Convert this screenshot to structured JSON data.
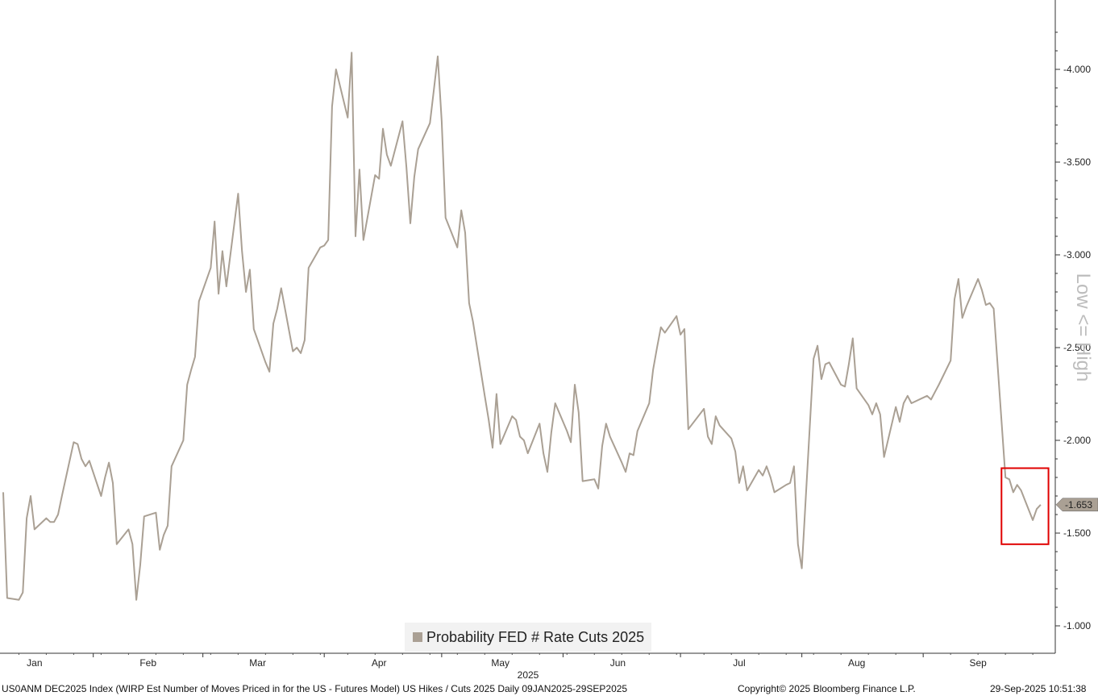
{
  "chart_data": {
    "type": "line",
    "title": "",
    "ylabel": "Low <= High",
    "xlabel": "2025",
    "y_axis_inverted": true,
    "y_axis_position": "right",
    "ylim": [
      -0.95,
      -4.3
    ],
    "yticks": [
      -4.0,
      -3.5,
      -3.0,
      -2.5,
      -2.0,
      -1.5,
      -1.0
    ],
    "ytick_labels": [
      "-4.000",
      "-3.500",
      "-3.000",
      "-2.500",
      "-2.000",
      "-1.500",
      "-1.000"
    ],
    "xlim": [
      "2025-01-09",
      "2025-09-30"
    ],
    "months": [
      {
        "label": "Jan",
        "date": "2025-01-17"
      },
      {
        "label": "Feb",
        "date": "2025-02-15"
      },
      {
        "label": "Mar",
        "date": "2025-03-15"
      },
      {
        "label": "Apr",
        "date": "2025-04-15"
      },
      {
        "label": "May",
        "date": "2025-05-16"
      },
      {
        "label": "Jun",
        "date": "2025-06-15"
      },
      {
        "label": "Jul",
        "date": "2025-07-16"
      },
      {
        "label": "Aug",
        "date": "2025-08-15"
      },
      {
        "label": "Sep",
        "date": "2025-09-15"
      }
    ],
    "grid": false,
    "legend_position": "bottom-center",
    "series": [
      {
        "name": "Probability FED # Rate Cuts 2025",
        "color": "#aaa094",
        "last_value_label": "-1.653",
        "points": [
          [
            "2025-01-09",
            -1.72
          ],
          [
            "2025-01-10",
            -1.15
          ],
          [
            "2025-01-13",
            -1.14
          ],
          [
            "2025-01-14",
            -1.18
          ],
          [
            "2025-01-15",
            -1.58
          ],
          [
            "2025-01-16",
            -1.7
          ],
          [
            "2025-01-17",
            -1.52
          ],
          [
            "2025-01-20",
            -1.58
          ],
          [
            "2025-01-21",
            -1.56
          ],
          [
            "2025-01-22",
            -1.56
          ],
          [
            "2025-01-23",
            -1.6
          ],
          [
            "2025-01-24",
            -1.7
          ],
          [
            "2025-01-27",
            -1.99
          ],
          [
            "2025-01-28",
            -1.98
          ],
          [
            "2025-01-29",
            -1.9
          ],
          [
            "2025-01-30",
            -1.86
          ],
          [
            "2025-01-31",
            -1.89
          ],
          [
            "2025-02-03",
            -1.7
          ],
          [
            "2025-02-04",
            -1.8
          ],
          [
            "2025-02-05",
            -1.88
          ],
          [
            "2025-02-06",
            -1.77
          ],
          [
            "2025-02-07",
            -1.44
          ],
          [
            "2025-02-10",
            -1.52
          ],
          [
            "2025-02-11",
            -1.44
          ],
          [
            "2025-02-12",
            -1.14
          ],
          [
            "2025-02-13",
            -1.33
          ],
          [
            "2025-02-14",
            -1.59
          ],
          [
            "2025-02-17",
            -1.61
          ],
          [
            "2025-02-18",
            -1.41
          ],
          [
            "2025-02-19",
            -1.49
          ],
          [
            "2025-02-20",
            -1.54
          ],
          [
            "2025-02-21",
            -1.86
          ],
          [
            "2025-02-24",
            -2.0
          ],
          [
            "2025-02-25",
            -2.3
          ],
          [
            "2025-02-26",
            -2.38
          ],
          [
            "2025-02-27",
            -2.45
          ],
          [
            "2025-02-28",
            -2.75
          ],
          [
            "2025-03-03",
            -2.93
          ],
          [
            "2025-03-04",
            -3.18
          ],
          [
            "2025-03-05",
            -2.79
          ],
          [
            "2025-03-06",
            -3.02
          ],
          [
            "2025-03-07",
            -2.83
          ],
          [
            "2025-03-10",
            -3.33
          ],
          [
            "2025-03-11",
            -3.02
          ],
          [
            "2025-03-12",
            -2.8
          ],
          [
            "2025-03-13",
            -2.92
          ],
          [
            "2025-03-14",
            -2.6
          ],
          [
            "2025-03-17",
            -2.42
          ],
          [
            "2025-03-18",
            -2.37
          ],
          [
            "2025-03-19",
            -2.63
          ],
          [
            "2025-03-20",
            -2.71
          ],
          [
            "2025-03-21",
            -2.82
          ],
          [
            "2025-03-24",
            -2.48
          ],
          [
            "2025-03-25",
            -2.5
          ],
          [
            "2025-03-26",
            -2.47
          ],
          [
            "2025-03-27",
            -2.54
          ],
          [
            "2025-03-28",
            -2.93
          ],
          [
            "2025-03-31",
            -3.04
          ],
          [
            "2025-04-01",
            -3.05
          ],
          [
            "2025-04-02",
            -3.08
          ],
          [
            "2025-04-03",
            -3.8
          ],
          [
            "2025-04-04",
            -4.0
          ],
          [
            "2025-04-07",
            -3.74
          ],
          [
            "2025-04-08",
            -4.09
          ],
          [
            "2025-04-09",
            -3.1
          ],
          [
            "2025-04-10",
            -3.46
          ],
          [
            "2025-04-11",
            -3.08
          ],
          [
            "2025-04-14",
            -3.43
          ],
          [
            "2025-04-15",
            -3.41
          ],
          [
            "2025-04-16",
            -3.68
          ],
          [
            "2025-04-17",
            -3.54
          ],
          [
            "2025-04-18",
            -3.48
          ],
          [
            "2025-04-21",
            -3.72
          ],
          [
            "2025-04-22",
            -3.47
          ],
          [
            "2025-04-23",
            -3.17
          ],
          [
            "2025-04-24",
            -3.42
          ],
          [
            "2025-04-25",
            -3.57
          ],
          [
            "2025-04-28",
            -3.71
          ],
          [
            "2025-04-29",
            -3.89
          ],
          [
            "2025-04-30",
            -4.07
          ],
          [
            "2025-05-01",
            -3.72
          ],
          [
            "2025-05-02",
            -3.2
          ],
          [
            "2025-05-05",
            -3.04
          ],
          [
            "2025-05-06",
            -3.24
          ],
          [
            "2025-05-07",
            -3.12
          ],
          [
            "2025-05-08",
            -2.74
          ],
          [
            "2025-05-09",
            -2.64
          ],
          [
            "2025-05-12",
            -2.24
          ],
          [
            "2025-05-13",
            -2.11
          ],
          [
            "2025-05-14",
            -1.96
          ],
          [
            "2025-05-15",
            -2.25
          ],
          [
            "2025-05-16",
            -1.98
          ],
          [
            "2025-05-19",
            -2.13
          ],
          [
            "2025-05-20",
            -2.11
          ],
          [
            "2025-05-21",
            -2.02
          ],
          [
            "2025-05-22",
            -2.0
          ],
          [
            "2025-05-23",
            -1.93
          ],
          [
            "2025-05-26",
            -2.09
          ],
          [
            "2025-05-27",
            -1.93
          ],
          [
            "2025-05-28",
            -1.83
          ],
          [
            "2025-05-29",
            -2.04
          ],
          [
            "2025-05-30",
            -2.2
          ],
          [
            "2025-06-02",
            -2.05
          ],
          [
            "2025-06-03",
            -1.99
          ],
          [
            "2025-06-04",
            -2.3
          ],
          [
            "2025-06-05",
            -2.15
          ],
          [
            "2025-06-06",
            -1.78
          ],
          [
            "2025-06-09",
            -1.79
          ],
          [
            "2025-06-10",
            -1.74
          ],
          [
            "2025-06-11",
            -1.97
          ],
          [
            "2025-06-12",
            -2.09
          ],
          [
            "2025-06-13",
            -2.02
          ],
          [
            "2025-06-16",
            -1.88
          ],
          [
            "2025-06-17",
            -1.83
          ],
          [
            "2025-06-18",
            -1.93
          ],
          [
            "2025-06-19",
            -1.92
          ],
          [
            "2025-06-20",
            -2.05
          ],
          [
            "2025-06-23",
            -2.2
          ],
          [
            "2025-06-24",
            -2.38
          ],
          [
            "2025-06-25",
            -2.5
          ],
          [
            "2025-06-26",
            -2.61
          ],
          [
            "2025-06-27",
            -2.58
          ],
          [
            "2025-06-30",
            -2.67
          ],
          [
            "2025-07-01",
            -2.57
          ],
          [
            "2025-07-02",
            -2.6
          ],
          [
            "2025-07-03",
            -2.06
          ],
          [
            "2025-07-07",
            -2.17
          ],
          [
            "2025-07-08",
            -2.02
          ],
          [
            "2025-07-09",
            -1.98
          ],
          [
            "2025-07-10",
            -2.13
          ],
          [
            "2025-07-11",
            -2.08
          ],
          [
            "2025-07-14",
            -2.01
          ],
          [
            "2025-07-15",
            -1.94
          ],
          [
            "2025-07-16",
            -1.77
          ],
          [
            "2025-07-17",
            -1.86
          ],
          [
            "2025-07-18",
            -1.73
          ],
          [
            "2025-07-21",
            -1.84
          ],
          [
            "2025-07-22",
            -1.81
          ],
          [
            "2025-07-23",
            -1.86
          ],
          [
            "2025-07-24",
            -1.8
          ],
          [
            "2025-07-25",
            -1.72
          ],
          [
            "2025-07-28",
            -1.76
          ],
          [
            "2025-07-29",
            -1.77
          ],
          [
            "2025-07-30",
            -1.86
          ],
          [
            "2025-07-31",
            -1.44
          ],
          [
            "2025-08-01",
            -1.31
          ],
          [
            "2025-08-04",
            -2.44
          ],
          [
            "2025-08-05",
            -2.51
          ],
          [
            "2025-08-06",
            -2.33
          ],
          [
            "2025-08-07",
            -2.41
          ],
          [
            "2025-08-08",
            -2.42
          ],
          [
            "2025-08-11",
            -2.3
          ],
          [
            "2025-08-12",
            -2.29
          ],
          [
            "2025-08-13",
            -2.41
          ],
          [
            "2025-08-14",
            -2.55
          ],
          [
            "2025-08-15",
            -2.28
          ],
          [
            "2025-08-18",
            -2.19
          ],
          [
            "2025-08-19",
            -2.14
          ],
          [
            "2025-08-20",
            -2.2
          ],
          [
            "2025-08-21",
            -2.14
          ],
          [
            "2025-08-22",
            -1.91
          ],
          [
            "2025-08-25",
            -2.18
          ],
          [
            "2025-08-26",
            -2.1
          ],
          [
            "2025-08-27",
            -2.2
          ],
          [
            "2025-08-28",
            -2.24
          ],
          [
            "2025-08-29",
            -2.2
          ],
          [
            "2025-09-02",
            -2.24
          ],
          [
            "2025-09-03",
            -2.22
          ],
          [
            "2025-09-04",
            -2.26
          ],
          [
            "2025-09-05",
            -2.3
          ],
          [
            "2025-09-08",
            -2.43
          ],
          [
            "2025-09-09",
            -2.76
          ],
          [
            "2025-09-10",
            -2.87
          ],
          [
            "2025-09-11",
            -2.66
          ],
          [
            "2025-09-12",
            -2.72
          ],
          [
            "2025-09-15",
            -2.87
          ],
          [
            "2025-09-16",
            -2.81
          ],
          [
            "2025-09-17",
            -2.73
          ],
          [
            "2025-09-18",
            -2.74
          ],
          [
            "2025-09-19",
            -2.71
          ],
          [
            "2025-09-22",
            -1.8
          ],
          [
            "2025-09-23",
            -1.79
          ],
          [
            "2025-09-24",
            -1.72
          ],
          [
            "2025-09-25",
            -1.76
          ],
          [
            "2025-09-26",
            -1.73
          ],
          [
            "2025-09-29",
            -1.57
          ],
          [
            "2025-09-30",
            -1.63
          ],
          [
            "2025-10-01",
            -1.653
          ]
        ]
      }
    ],
    "annotations": [
      {
        "type": "rectangle",
        "color": "#e00000",
        "x_from": "2025-09-21",
        "x_to": "2025-10-03",
        "y_from": -1.44,
        "y_to": -1.85
      }
    ]
  },
  "footer": {
    "left": "US0ANM DEC2025 Index (WIRP Est Number of Moves Priced in for the US - Futures Model) US Hikes / Cuts 2025  Daily 09JAN2025-29SEP2025",
    "center": "Copyright© 2025 Bloomberg Finance L.P.",
    "right": "29-Sep-2025 10:51:38"
  }
}
